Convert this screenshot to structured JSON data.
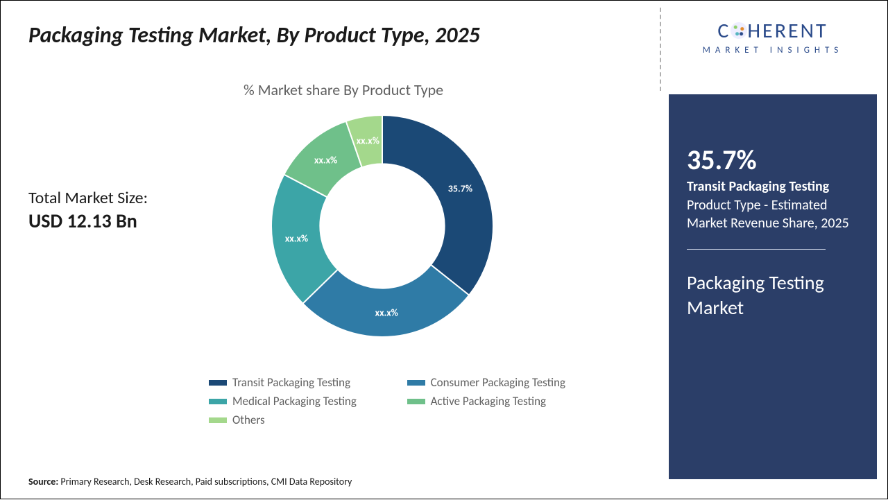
{
  "title": "Packaging Testing Market, By Product Type, 2025",
  "chart": {
    "subtitle": "% Market share By Product Type",
    "type": "donut",
    "inner_radius_ratio": 0.56,
    "slices": [
      {
        "name": "Transit Packaging Testing",
        "value": 35.7,
        "label": "35.7%",
        "color": "#1b4976"
      },
      {
        "name": "Consumer Packaging Testing",
        "value": 27.0,
        "label": "xx.x%",
        "color": "#2f7ba6"
      },
      {
        "name": "Medical Packaging Testing",
        "value": 20.0,
        "label": "xx.x%",
        "color": "#3ca5a7"
      },
      {
        "name": "Active Packaging Testing",
        "value": 12.0,
        "label": "xx.x%",
        "color": "#6fc08a"
      },
      {
        "name": "Others",
        "value": 5.3,
        "label": "xx.x%",
        "color": "#a4d88c"
      }
    ],
    "label_color": "#ffffff",
    "label_fontsize": 14,
    "start_angle_deg": -90,
    "background": "#ffffff"
  },
  "market_size": {
    "label": "Total Market Size:",
    "value": "USD 12.13 Bn"
  },
  "legend": {
    "fontsize": 17,
    "text_color": "#606060",
    "items": [
      {
        "label": "Transit Packaging Testing",
        "color": "#1b4976"
      },
      {
        "label": "Consumer Packaging Testing",
        "color": "#2f7ba6"
      },
      {
        "label": "Medical Packaging Testing",
        "color": "#3ca5a7"
      },
      {
        "label": "Active Packaging Testing",
        "color": "#6fc08a"
      },
      {
        "label": "Others",
        "color": "#a4d88c"
      }
    ]
  },
  "logo": {
    "main_left": "C",
    "main_right": "HERENT",
    "sub": "MARKET INSIGHTS"
  },
  "side_panel": {
    "percent": "35.7%",
    "segment_name": " Transit Packaging Testing",
    "desc": "Product Type - Estimated Market Revenue Share, 2025",
    "market_name": "Packaging Testing Market",
    "background": "#2b3e68",
    "text_color": "#ffffff"
  },
  "source": {
    "label": "Source:",
    "text": " Primary Research, Desk Research, Paid subscriptions, CMI Data Repository"
  }
}
